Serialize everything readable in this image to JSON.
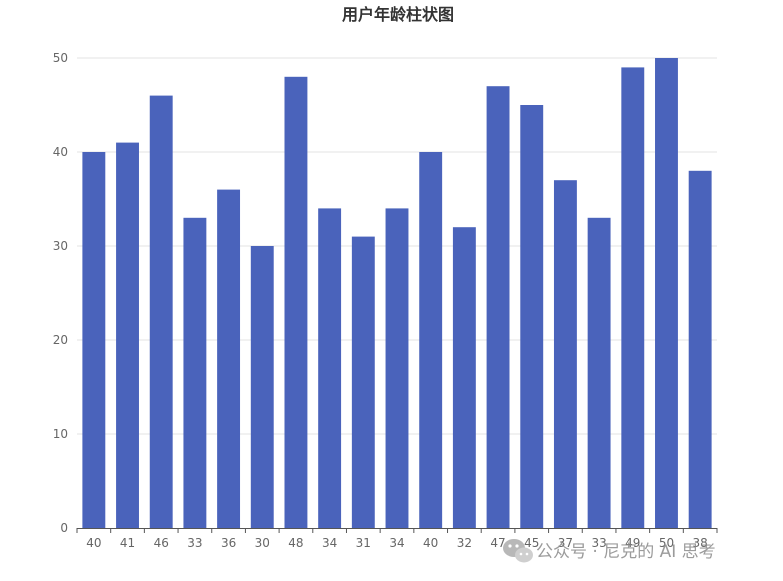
{
  "chart_data": {
    "type": "bar",
    "title": "用户年龄柱状图",
    "categories": [
      "40",
      "41",
      "46",
      "33",
      "36",
      "30",
      "48",
      "34",
      "31",
      "34",
      "40",
      "32",
      "47",
      "45",
      "37",
      "33",
      "49",
      "50",
      "38"
    ],
    "values": [
      40,
      41,
      46,
      33,
      36,
      30,
      48,
      34,
      31,
      34,
      40,
      32,
      47,
      45,
      37,
      33,
      49,
      50,
      38
    ],
    "ylim": [
      0,
      50
    ],
    "yticks": [
      0,
      10,
      20,
      30,
      40,
      50
    ],
    "grid": true,
    "bar_color": "#4a63bb"
  },
  "watermark": {
    "text": "公众号 · 尼克的 AI 思考",
    "icon": "wechat-icon"
  }
}
